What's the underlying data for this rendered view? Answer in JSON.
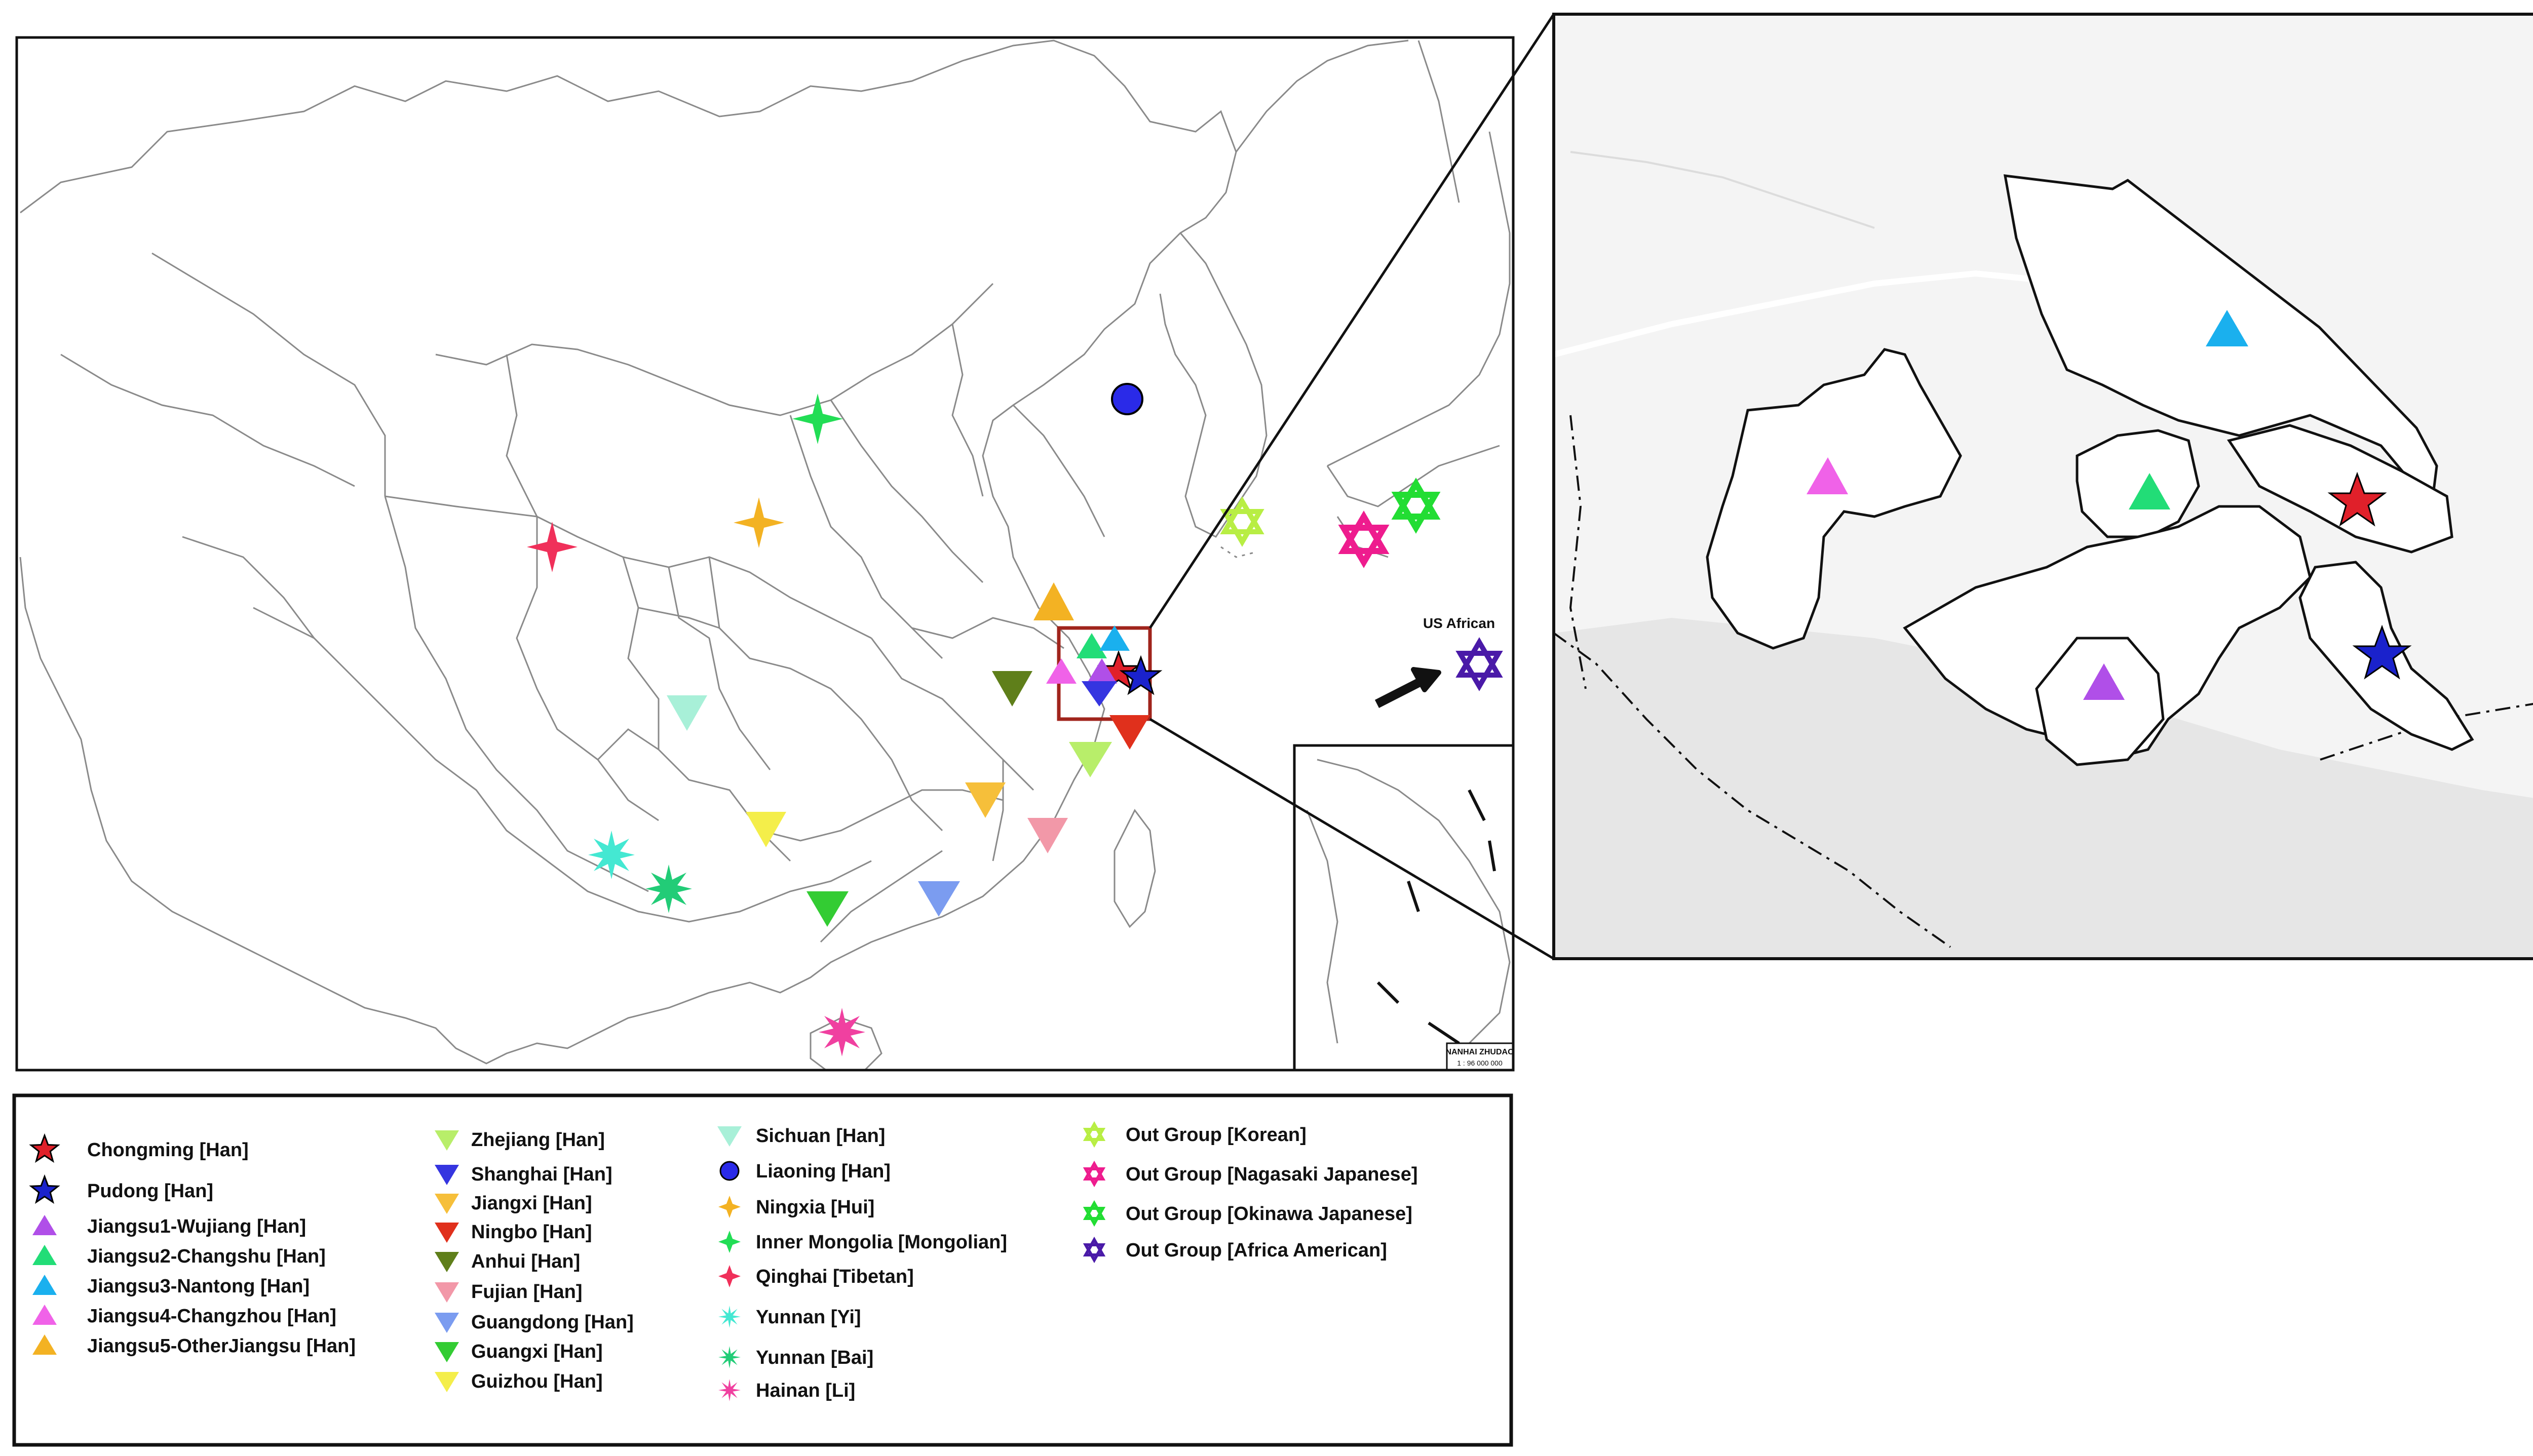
{
  "main_map": {
    "annotation_label": "US African",
    "inset_caption": "NANHAI ZHUDAO",
    "inset_scale": "1 : 96 000 000"
  },
  "legend": {
    "columns": [
      [
        {
          "label": "Chongming [Han]",
          "color": "#e0202a",
          "marker": "star"
        },
        {
          "label": "Pudong [Han]",
          "color": "#1a22cc",
          "marker": "star"
        },
        {
          "label": "Jiangsu1-Wujiang [Han]",
          "color": "#b04fe8",
          "marker": "triangle-up"
        },
        {
          "label": "Jiangsu2-Changshu [Han]",
          "color": "#22dd77",
          "marker": "triangle-up"
        },
        {
          "label": "Jiangsu3-Nantong [Han]",
          "color": "#1ab0ee",
          "marker": "triangle-up"
        },
        {
          "label": "Jiangsu4-Changzhou [Han]",
          "color": "#f062e8",
          "marker": "triangle-up"
        },
        {
          "label": "Jiangsu5-OtherJiangsu [Han]",
          "color": "#f3b223",
          "marker": "triangle-up"
        }
      ],
      [
        {
          "label": "Zhejiang [Han]",
          "color": "#b8ee6a",
          "marker": "triangle-down"
        },
        {
          "label": "Shanghai [Han]",
          "color": "#3535e0",
          "marker": "triangle-down"
        },
        {
          "label": "Jiangxi [Han]",
          "color": "#f6bf3a",
          "marker": "triangle-down"
        },
        {
          "label": "Ningbo [Han]",
          "color": "#e0301c",
          "marker": "triangle-down"
        },
        {
          "label": "Anhui [Han]",
          "color": "#5f7f1a",
          "marker": "triangle-down"
        },
        {
          "label": "Fujian [Han]",
          "color": "#f298a8",
          "marker": "triangle-down"
        },
        {
          "label": "Guangdong [Han]",
          "color": "#7b9cf0",
          "marker": "triangle-down"
        },
        {
          "label": "Guangxi [Han]",
          "color": "#33cc33",
          "marker": "triangle-down"
        },
        {
          "label": "Guizhou [Han]",
          "color": "#f4ee4a",
          "marker": "triangle-down"
        }
      ],
      [
        {
          "label": "Sichuan [Han]",
          "color": "#a8f0d8",
          "marker": "triangle-down"
        },
        {
          "label": "Liaoning [Han]",
          "color": "#2a2ae8",
          "marker": "circle"
        },
        {
          "label": "Ningxia [Hui]",
          "color": "#f3b223",
          "marker": "star4"
        },
        {
          "label": "Inner Mongolia [Mongolian]",
          "color": "#22dd55",
          "marker": "star4"
        },
        {
          "label": "Qinghai [Tibetan]",
          "color": "#f0305a",
          "marker": "star4"
        },
        {
          "label": "Yunnan [Yi]",
          "color": "#44e8d2",
          "marker": "star8"
        },
        {
          "label": "Yunnan [Bai]",
          "color": "#22cc77",
          "marker": "star8"
        },
        {
          "label": "Hainan [Li]",
          "color": "#f040a0",
          "marker": "star8"
        }
      ],
      [
        {
          "label": "Out Group [Korean]",
          "color": "#b8ee44",
          "marker": "hexagram"
        },
        {
          "label": "Out Group [Nagasaki Japanese]",
          "color": "#ee1c8e",
          "marker": "hexagram"
        },
        {
          "label": "Out Group [Okinawa Japanese]",
          "color": "#22dd33",
          "marker": "hexagram"
        },
        {
          "label": "Out Group [Africa American]",
          "color": "#4a1aa8",
          "marker": "hexagram"
        }
      ]
    ]
  },
  "colors": {
    "frame": "#111111",
    "highlight_box": "#a0241c",
    "inset_water": "#e9e9e9",
    "inset_land": "#f4f4f4",
    "boundary": "#8a8a8a"
  }
}
